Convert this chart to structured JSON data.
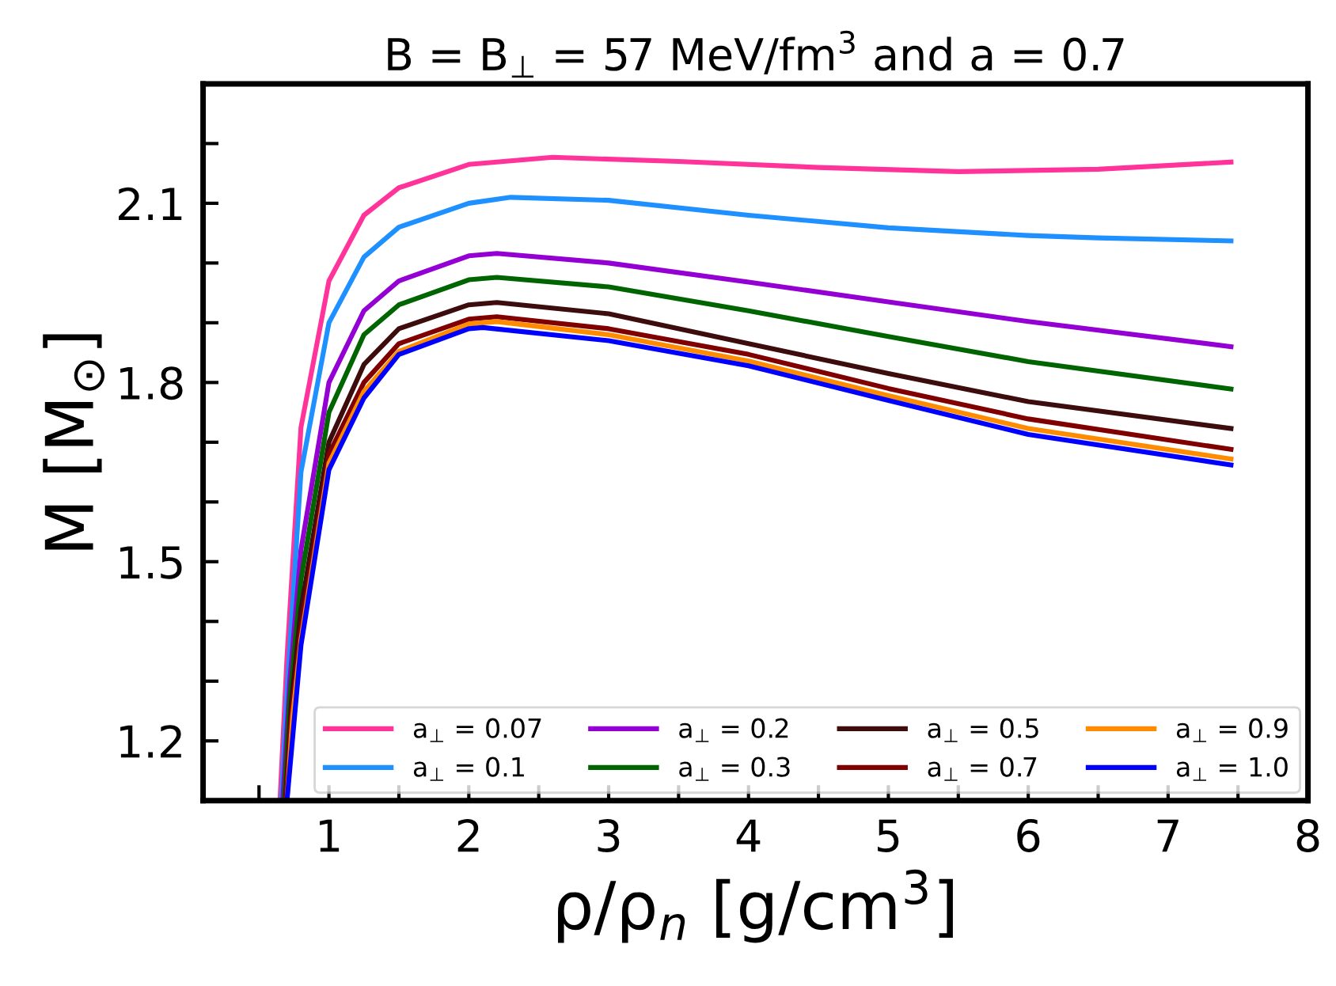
{
  "chart_data": {
    "type": "line",
    "title": "B = B$_{⊥}$ = 57 MeV/fm$^{3}$ and a = 0.7",
    "xlabel": "ρ/ρ$_{n}$ [g/cm$^{3}$]",
    "ylabel": "M [M$_{⊙}$]",
    "xlim": [
      0.1,
      8
    ],
    "ylim": [
      1.1,
      2.3
    ],
    "xticks": [
      {
        "value": 0.5,
        "label": null
      },
      1,
      {
        "value": 1.5,
        "label": null
      },
      2,
      {
        "value": 2.5,
        "label": null
      },
      3,
      {
        "value": 3.5,
        "label": null
      },
      4,
      {
        "value": 4.5,
        "label": null
      },
      5,
      {
        "value": 5.5,
        "label": null
      },
      6,
      {
        "value": 6.5,
        "label": null
      },
      7,
      {
        "value": 7.5,
        "label": null
      },
      8
    ],
    "yticks": [
      {
        "value": 1.1,
        "label": null
      },
      1.2,
      {
        "value": 1.3,
        "label": null
      },
      {
        "value": 1.4,
        "label": null
      },
      1.5,
      {
        "value": 1.6,
        "label": null
      },
      {
        "value": 1.7,
        "label": null
      },
      1.8,
      {
        "value": 1.9,
        "label": null
      },
      {
        "value": 2.0,
        "label": null
      },
      2.1,
      {
        "value": 2.2,
        "label": null
      }
    ],
    "grid": false,
    "legend": "bottom right",
    "line_style": "solid",
    "marker": "none",
    "series": [
      {
        "name": "a$_{⊥}$ = 0.07",
        "color": "#ff3399",
        "x": [
          0.65,
          0.7,
          0.8,
          1.0,
          1.25,
          1.5,
          2.0,
          2.6,
          3.5,
          4.5,
          5.5,
          6.5,
          7.45
        ],
        "values": [
          1.1,
          1.34,
          1.725,
          1.97,
          2.08,
          2.126,
          2.165,
          2.177,
          2.17,
          2.16,
          2.153,
          2.157,
          2.169
        ]
      },
      {
        "name": "a$_{⊥}$ = 0.1",
        "color": "#1e90ff",
        "x": [
          0.66,
          0.7,
          0.8,
          1.0,
          1.25,
          1.5,
          2.0,
          2.3,
          3.0,
          4.0,
          5.0,
          6.0,
          6.5,
          7.45
        ],
        "values": [
          1.1,
          1.28,
          1.65,
          1.9,
          2.01,
          2.06,
          2.1,
          2.11,
          2.105,
          2.08,
          2.059,
          2.046,
          2.042,
          2.037
        ]
      },
      {
        "name": "a$_{⊥}$ = 0.2",
        "color": "#9400d3",
        "x": [
          0.67,
          0.72,
          0.8,
          1.0,
          1.25,
          1.5,
          2.0,
          2.2,
          3.0,
          4.0,
          5.0,
          6.0,
          7.45
        ],
        "values": [
          1.1,
          1.3,
          1.52,
          1.8,
          1.92,
          1.97,
          2.012,
          2.016,
          2.0,
          1.968,
          1.935,
          1.902,
          1.86
        ]
      },
      {
        "name": "a$_{⊥}$ = 0.3",
        "color": "#006400",
        "x": [
          0.68,
          0.72,
          0.8,
          1.0,
          1.25,
          1.5,
          2.0,
          2.2,
          3.0,
          4.0,
          5.0,
          6.0,
          7.45
        ],
        "values": [
          1.1,
          1.27,
          1.47,
          1.75,
          1.88,
          1.93,
          1.972,
          1.976,
          1.96,
          1.92,
          1.877,
          1.835,
          1.789
        ]
      },
      {
        "name": "a$_{⊥}$ = 0.5",
        "color": "#3d0c0c",
        "x": [
          0.69,
          0.73,
          0.8,
          1.0,
          1.25,
          1.5,
          2.0,
          2.2,
          3.0,
          4.0,
          5.0,
          6.0,
          7.45
        ],
        "values": [
          1.1,
          1.26,
          1.42,
          1.7,
          1.83,
          1.89,
          1.93,
          1.934,
          1.915,
          1.865,
          1.815,
          1.768,
          1.723
        ]
      },
      {
        "name": "a$_{⊥}$ = 0.7",
        "color": "#800000",
        "x": [
          0.69,
          0.73,
          0.8,
          1.0,
          1.25,
          1.5,
          2.0,
          2.2,
          3.0,
          4.0,
          5.0,
          6.0,
          7.45
        ],
        "values": [
          1.1,
          1.24,
          1.39,
          1.68,
          1.8,
          1.865,
          1.906,
          1.91,
          1.89,
          1.847,
          1.79,
          1.739,
          1.688
        ]
      },
      {
        "name": "a$_{⊥}$ = 0.9",
        "color": "#ff8c00",
        "x": [
          0.7,
          0.74,
          0.8,
          1.0,
          1.25,
          1.5,
          2.0,
          2.2,
          3.0,
          4.0,
          5.0,
          6.0,
          7.45
        ],
        "values": [
          1.1,
          1.24,
          1.37,
          1.665,
          1.785,
          1.852,
          1.898,
          1.902,
          1.88,
          1.836,
          1.778,
          1.723,
          1.672
        ]
      },
      {
        "name": "a$_{⊥}$ = 1.0",
        "color": "#0000ff",
        "x": [
          0.7,
          0.75,
          0.8,
          1.0,
          1.25,
          1.5,
          2.0,
          2.1,
          3.0,
          4.0,
          5.0,
          6.0,
          7.45
        ],
        "values": [
          1.1,
          1.23,
          1.36,
          1.654,
          1.774,
          1.847,
          1.89,
          1.892,
          1.87,
          1.828,
          1.77,
          1.713,
          1.662
        ]
      }
    ]
  }
}
